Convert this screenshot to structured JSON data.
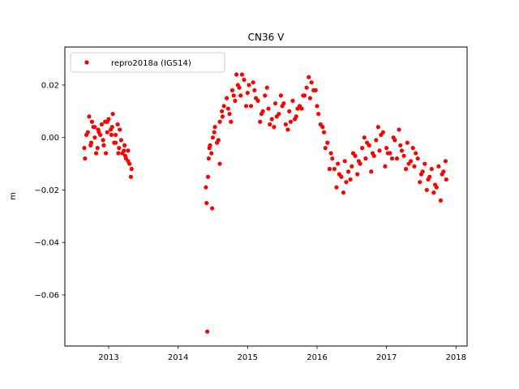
{
  "chart_data": {
    "type": "scatter",
    "title": "CN36 V",
    "xlabel": "",
    "ylabel": "m",
    "xlim": [
      2012.37,
      2018.16
    ],
    "ylim": [
      -0.0795,
      0.0345
    ],
    "xticks": [
      2013,
      2014,
      2015,
      2016,
      2017,
      2018
    ],
    "xtick_labels": [
      "2013",
      "2014",
      "2015",
      "2016",
      "2017",
      "2018"
    ],
    "yticks": [
      0.02,
      0.0,
      -0.02,
      -0.04,
      -0.06
    ],
    "ytick_labels": [
      "0.02",
      "0.00",
      "−0.02",
      "−0.04",
      "−0.06"
    ],
    "legend_position": "upper-left",
    "grid": false,
    "series": [
      {
        "name": "repro2018a (IGS14)",
        "color": "#ff0000",
        "marker": "circle",
        "x": [
          2012.65,
          2012.7,
          2012.72,
          2012.75,
          2012.78,
          2012.8,
          2012.82,
          2012.85,
          2012.88,
          2012.9,
          2012.93,
          2012.95,
          2012.98,
          2013.0,
          2013.03,
          2013.05,
          2013.08,
          2013.1,
          2013.13,
          2013.15,
          2013.18,
          2013.2,
          2013.23,
          2013.25,
          2013.28,
          2013.3,
          2013.33,
          2014.4,
          2014.41,
          2014.42,
          2014.43,
          2014.44,
          2014.46,
          2014.48,
          2014.5,
          2014.53,
          2014.56,
          2014.6,
          2014.63,
          2014.66,
          2014.7,
          2014.74,
          2014.78,
          2014.82,
          2014.86,
          2014.9,
          2014.95,
          2015.0,
          2015.05,
          2015.1,
          2015.15,
          2015.2,
          2015.25,
          2015.3,
          2015.35,
          2015.4,
          2015.45,
          2015.5,
          2015.55,
          2015.6,
          2015.65,
          2015.7,
          2015.75,
          2015.8,
          2015.85,
          2015.9,
          2015.95,
          2016.0,
          2016.05,
          2016.1,
          2016.15,
          2016.2,
          2016.25,
          2016.3,
          2016.35,
          2016.4,
          2016.45,
          2016.5,
          2016.55,
          2016.6,
          2016.65,
          2016.7,
          2016.75,
          2016.8,
          2016.85,
          2016.9,
          2016.95,
          2017.0,
          2017.05,
          2017.1,
          2017.15,
          2017.2,
          2017.25,
          2017.3,
          2017.35,
          2017.4,
          2017.45,
          2017.5,
          2017.55,
          2017.6,
          2017.65,
          2017.7,
          2017.75,
          2017.8,
          2017.85,
          2012.68,
          2012.74,
          2012.8,
          2012.86,
          2012.92,
          2012.98,
          2013.04,
          2013.1,
          2013.16,
          2013.22,
          2013.28,
          2014.45,
          2014.52,
          2014.58,
          2014.64,
          2014.72,
          2014.8,
          2014.88,
          2014.92,
          2015.02,
          2015.12,
          2015.22,
          2015.32,
          2015.42,
          2015.52,
          2015.62,
          2015.72,
          2015.82,
          2015.92,
          2016.02,
          2016.12,
          2016.22,
          2016.32,
          2016.42,
          2016.52,
          2016.62,
          2016.72,
          2016.82,
          2016.92,
          2017.02,
          2017.12,
          2017.22,
          2017.32,
          2017.42,
          2017.52,
          2017.62,
          2017.72,
          2017.82,
          2012.66,
          2012.76,
          2012.84,
          2012.96,
          2013.06,
          2013.14,
          2013.24,
          2013.32,
          2014.49,
          2014.6,
          2014.76,
          2014.84,
          2014.98,
          2015.08,
          2015.18,
          2015.28,
          2015.38,
          2015.48,
          2015.58,
          2015.68,
          2015.78,
          2015.88,
          2015.98,
          2016.08,
          2016.18,
          2016.28,
          2016.38,
          2016.48,
          2016.58,
          2016.68,
          2016.78,
          2016.88,
          2016.98,
          2017.08,
          2017.18,
          2017.28,
          2017.38,
          2017.48,
          2017.58,
          2017.68,
          2017.78,
          2017.86
        ],
        "y": [
          -0.004,
          0.002,
          0.008,
          -0.002,
          0.004,
          0.0,
          -0.006,
          0.003,
          0.001,
          0.005,
          -0.003,
          0.006,
          0.002,
          0.007,
          0.003,
          0.004,
          -0.002,
          0.001,
          0.005,
          -0.004,
          -0.001,
          -0.006,
          -0.003,
          -0.008,
          -0.005,
          -0.01,
          -0.012,
          -0.019,
          -0.025,
          -0.074,
          -0.015,
          -0.008,
          -0.003,
          -0.006,
          0.0,
          0.004,
          -0.002,
          0.006,
          0.01,
          0.012,
          0.015,
          0.009,
          0.018,
          0.014,
          0.02,
          0.016,
          0.022,
          0.017,
          0.012,
          0.018,
          0.014,
          0.009,
          0.016,
          0.011,
          0.007,
          0.013,
          0.009,
          0.012,
          0.005,
          0.01,
          0.014,
          0.008,
          0.012,
          0.016,
          0.019,
          0.015,
          0.018,
          0.012,
          0.005,
          0.002,
          -0.002,
          -0.006,
          -0.012,
          -0.01,
          -0.015,
          -0.009,
          -0.013,
          -0.011,
          -0.007,
          -0.009,
          -0.004,
          -0.008,
          -0.003,
          -0.006,
          -0.001,
          -0.005,
          0.002,
          -0.004,
          -0.006,
          0.0,
          -0.008,
          -0.003,
          -0.007,
          -0.002,
          -0.009,
          -0.011,
          -0.008,
          -0.014,
          -0.01,
          -0.016,
          -0.012,
          -0.018,
          -0.011,
          -0.014,
          -0.009,
          0.001,
          -0.003,
          0.004,
          0.002,
          -0.001,
          0.006,
          0.001,
          -0.002,
          0.003,
          -0.005,
          -0.009,
          -0.004,
          0.002,
          -0.001,
          0.008,
          0.011,
          0.016,
          0.019,
          0.024,
          0.02,
          0.015,
          0.01,
          0.005,
          0.008,
          0.013,
          0.006,
          0.011,
          0.016,
          0.021,
          0.009,
          -0.004,
          -0.008,
          -0.014,
          -0.017,
          -0.006,
          -0.01,
          -0.002,
          -0.007,
          0.001,
          -0.006,
          -0.001,
          -0.005,
          -0.01,
          -0.006,
          -0.013,
          -0.015,
          -0.019,
          -0.013,
          -0.008,
          0.006,
          -0.004,
          -0.006,
          0.009,
          -0.006,
          -0.007,
          -0.015,
          -0.027,
          -0.01,
          0.006,
          0.024,
          0.012,
          0.021,
          0.006,
          0.019,
          0.004,
          0.016,
          0.003,
          0.007,
          0.011,
          0.023,
          0.018,
          0.004,
          -0.012,
          -0.019,
          -0.021,
          -0.016,
          -0.014,
          0.0,
          -0.013,
          0.004,
          -0.011,
          -0.008,
          0.003,
          -0.012,
          -0.004,
          -0.017,
          -0.02,
          -0.021,
          -0.024,
          -0.016
        ]
      }
    ]
  }
}
